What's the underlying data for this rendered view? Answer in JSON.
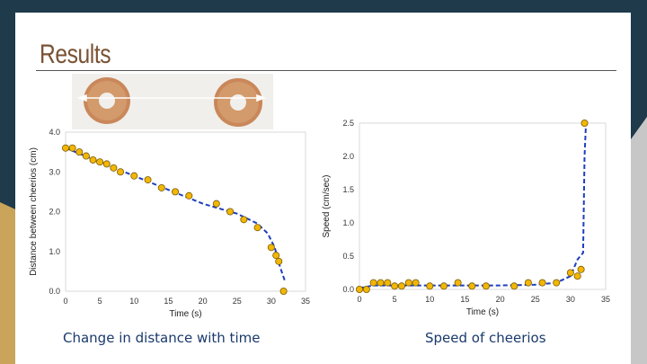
{
  "slide": {
    "title": "Results",
    "colors": {
      "frame": "#1f3a4a",
      "accent_gold": "#c9a45a",
      "title": "#7a5233",
      "caption": "#1a3a6c",
      "marker": "#f2b705",
      "fit_line": "#1f3fbf"
    }
  },
  "photo": {
    "alt": "two cheerios with a double arrow between them"
  },
  "captions": {
    "left": "Change in distance with time",
    "right": "Speed of cheerios"
  },
  "chart_data": [
    {
      "type": "scatter",
      "xlabel": "Time (s)",
      "ylabel": "Distance between cheerios (cm)",
      "xlim": [
        0,
        35
      ],
      "ylim": [
        0,
        4
      ],
      "xticks": [
        0,
        5,
        10,
        15,
        20,
        25,
        30,
        35
      ],
      "yticks": [
        0,
        1,
        2,
        3,
        4
      ],
      "ytick_labels": [
        "0.0",
        "1.0",
        "2.0",
        "3.0",
        "4.0"
      ],
      "grid": false,
      "series": [
        {
          "kind": "points",
          "x": [
            0,
            1,
            2,
            3,
            4,
            5,
            6,
            7,
            8,
            10,
            12,
            14,
            16,
            18,
            22,
            24,
            26,
            28,
            30,
            30.7,
            31.1,
            31.8
          ],
          "y": [
            3.6,
            3.6,
            3.5,
            3.4,
            3.3,
            3.25,
            3.2,
            3.1,
            3.0,
            2.9,
            2.8,
            2.6,
            2.5,
            2.4,
            2.2,
            2.0,
            1.8,
            1.6,
            1.1,
            0.9,
            0.75,
            0.0
          ]
        },
        {
          "kind": "fit",
          "x": [
            0,
            5,
            10,
            15,
            20,
            25,
            28,
            29.5,
            30.5,
            31.3,
            32
          ],
          "y": [
            3.6,
            3.25,
            2.9,
            2.55,
            2.2,
            1.95,
            1.7,
            1.45,
            1.1,
            0.6,
            0.25
          ]
        }
      ]
    },
    {
      "type": "scatter",
      "xlabel": "Time (s)",
      "ylabel": "Speed (cm/sec)",
      "xlim": [
        0,
        35
      ],
      "ylim": [
        0,
        2.5
      ],
      "xticks": [
        0,
        5,
        10,
        15,
        20,
        25,
        30,
        35
      ],
      "yticks": [
        0,
        0.5,
        1,
        1.5,
        2,
        2.5
      ],
      "ytick_labels": [
        "0.0",
        "0.5",
        "1.0",
        "1.5",
        "2.0",
        "2.5"
      ],
      "grid": false,
      "series": [
        {
          "kind": "points",
          "x": [
            0,
            1,
            2,
            3,
            4,
            5,
            6,
            7,
            8,
            10,
            12,
            14,
            16,
            18,
            22,
            24,
            26,
            28,
            30,
            31,
            31.5,
            32
          ],
          "y": [
            0,
            0,
            0.1,
            0.1,
            0.1,
            0.05,
            0.05,
            0.1,
            0.1,
            0.05,
            0.05,
            0.1,
            0.05,
            0.05,
            0.05,
            0.1,
            0.1,
            0.1,
            0.25,
            0.2,
            0.3,
            2.5
          ]
        },
        {
          "kind": "fit",
          "x": [
            0,
            2,
            5,
            10,
            15,
            20,
            25,
            28,
            30,
            31,
            31.8,
            32,
            32.2
          ],
          "y": [
            0.02,
            0.06,
            0.06,
            0.06,
            0.06,
            0.06,
            0.07,
            0.1,
            0.2,
            0.45,
            0.55,
            2.0,
            2.5
          ]
        }
      ]
    }
  ]
}
